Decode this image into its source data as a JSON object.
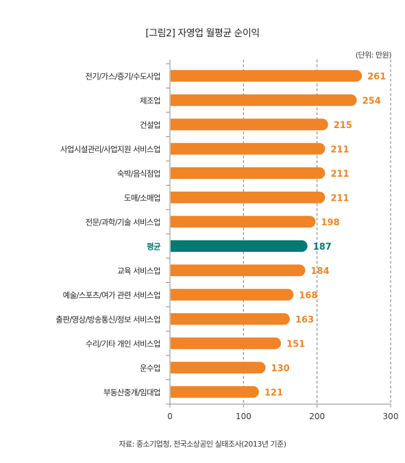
{
  "title": "[그림2] 자영업 월평균 순이익",
  "unit": "(단위: 만원)",
  "source": "자료: 중소기업청, 전국소상공인 실태조사(2013년 기준)",
  "colors": {
    "bar": "#F08426",
    "highlight": "#047A72",
    "value": "#F08426",
    "highlight_value": "#047A72"
  },
  "chart_data": {
    "type": "bar",
    "orientation": "horizontal",
    "categories": [
      "전기/가스/증기/수도사업",
      "제조업",
      "건설업",
      "사업시설관리/사업지원 서비스업",
      "숙박/음식점업",
      "도매/소매업",
      "전문/과학/기술 서비스업",
      "평균",
      "교육 서비스업",
      "예술/스포츠/여가 관련 서비스업",
      "출판/영상/방송통신/정보 서비스업",
      "수리/기타 개인 서비스업",
      "운수업",
      "부동산중개/임대업"
    ],
    "values": [
      261,
      254,
      215,
      211,
      211,
      211,
      198,
      187,
      184,
      168,
      163,
      151,
      130,
      121
    ],
    "highlight_category": "평균",
    "xlim": [
      0,
      300
    ],
    "xticks": [
      0,
      100,
      200,
      300
    ],
    "grid": "dashed-vertical"
  }
}
